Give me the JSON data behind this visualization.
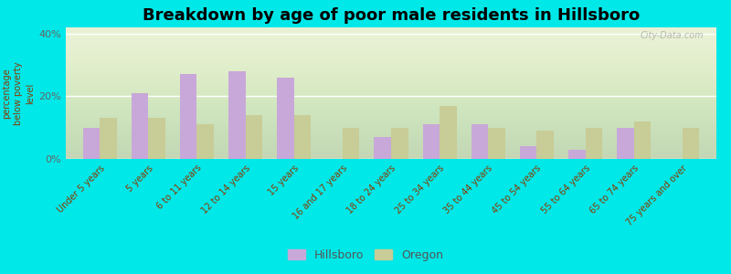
{
  "title": "Breakdown by age of poor male residents in Hillsboro",
  "ylabel": "percentage\nbelow poverty\nlevel",
  "categories": [
    "Under 5 years",
    "5 years",
    "6 to 11 years",
    "12 to 14 years",
    "15 years",
    "16 and 17 years",
    "18 to 24 years",
    "25 to 34 years",
    "35 to 44 years",
    "45 to 54 years",
    "55 to 64 years",
    "65 to 74 years",
    "75 years and over"
  ],
  "hillsboro": [
    10,
    21,
    27,
    28,
    26,
    0,
    7,
    11,
    11,
    4,
    3,
    10,
    0
  ],
  "oregon": [
    13,
    13,
    11,
    14,
    14,
    10,
    10,
    17,
    10,
    9,
    10,
    12,
    10
  ],
  "hillsboro_color": "#c8a8d8",
  "oregon_color": "#c8cc96",
  "plot_bg": "#dde8c0",
  "outer_bg": "#00e8e8",
  "ylim": [
    0,
    42
  ],
  "yticks": [
    0,
    20,
    40
  ],
  "ytick_labels": [
    "0%",
    "20%",
    "40%"
  ],
  "legend_hillsboro": "Hillsboro",
  "legend_oregon": "Oregon",
  "bar_width": 0.35,
  "title_fontsize": 13,
  "watermark": "City-Data.com"
}
